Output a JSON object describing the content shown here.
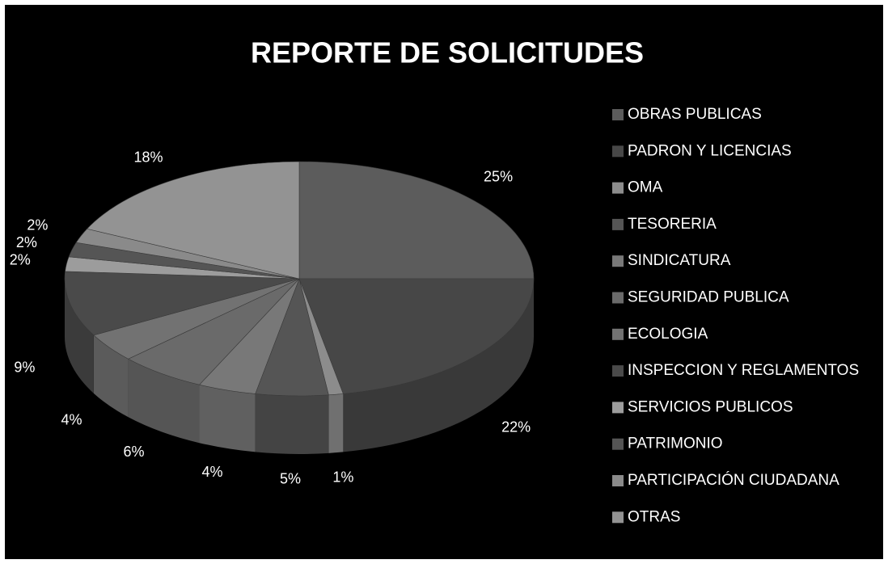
{
  "chart_data": {
    "type": "pie3d",
    "title": "REPORTE DE SOLICITUDES",
    "categories": [
      "OBRAS PUBLICAS",
      "PADRON Y LICENCIAS",
      "OMA",
      "TESORERIA",
      "SINDICATURA",
      "SEGURIDAD PUBLICA",
      "ECOLOGIA",
      "INSPECCION Y REGLAMENTOS",
      "SERVICIOS PUBLICOS",
      "PATRIMONIO",
      "PARTICIPACIÓN CIUDADANA",
      "OTRAS"
    ],
    "values": [
      25,
      22,
      1,
      5,
      4,
      6,
      4,
      9,
      2,
      2,
      2,
      18
    ],
    "value_labels": [
      "25%",
      "22%",
      "1%",
      "5%",
      "4%",
      "6%",
      "4%",
      "9%",
      "2%",
      "2%",
      "2%",
      "18%"
    ],
    "colors": [
      "#5c5c5c",
      "#474747",
      "#8c8c8c",
      "#555555",
      "#787878",
      "#6a6a6a",
      "#727272",
      "#4a4a4a",
      "#9c9c9c",
      "#555555",
      "#8a8a8a",
      "#939393"
    ],
    "legend": "right"
  }
}
